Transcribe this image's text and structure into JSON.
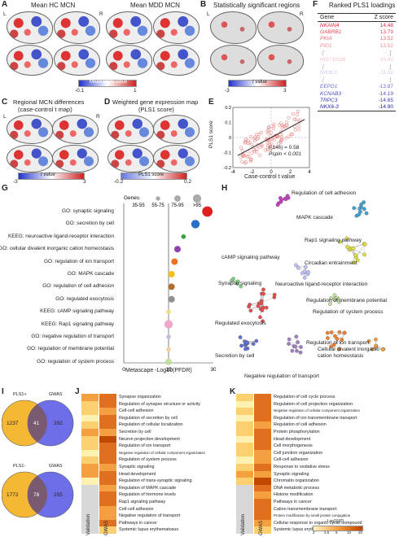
{
  "panels": {
    "A": "A",
    "B": "B",
    "C": "C",
    "D": "D",
    "E": "E",
    "F": "F",
    "G": "G",
    "H": "H",
    "I": "I",
    "J": "J",
    "K": "K"
  },
  "A": {
    "title_hc": "Mean HC MCN",
    "title_mdd": "Mean MDD MCN",
    "L": "L",
    "R": "R",
    "cbar_label": "Mean MCN value",
    "min": "-0.1",
    "max": "1"
  },
  "B": {
    "title": "Statistically significant regions",
    "L": "L",
    "R": "R",
    "cbar_label": "t value",
    "min": "-3",
    "max": "3"
  },
  "C": {
    "title1": "Regional MCN differences",
    "title2": "(case-control t map)",
    "L": "L",
    "R": "R",
    "cbar_label": "t value",
    "min": "-3",
    "max": "3"
  },
  "D": {
    "title1": "Weighted gene expression map",
    "title2": "(PLS1 score)",
    "cbar_label": "PLS1 score",
    "min": "-0.2",
    "max": "0.2"
  },
  "E": {
    "ylabel": "PLS1 score",
    "xlabel": "Case-control t value",
    "stat1": "r(146) = 0.58",
    "stat2": "Pspin < 0.001",
    "xticks": [
      "-4",
      "-2",
      "0",
      "2",
      "4"
    ],
    "yticks": [
      "0.2",
      "0.1",
      "0",
      "-0.1",
      "-0.2"
    ]
  },
  "F": {
    "title": "Ranked PLS1 loadings",
    "col_gene": "Gene",
    "col_z": "Z score",
    "rows": [
      {
        "gene": "NKAIN4",
        "z": "14.48",
        "color": "#e8203a"
      },
      {
        "gene": "GABRB1",
        "z": "13.79",
        "color": "#e84a5a"
      },
      {
        "gene": "PKIA",
        "z": "13.52",
        "color": "#ea6a75"
      },
      {
        "gene": "PID1",
        "z": "13.52",
        "color": "#ee8a92"
      },
      {
        "gene": "⋮",
        "z": "⋮",
        "color": "#333"
      },
      {
        "gene": "HIST1H2B",
        "z": "10.42",
        "color": "#f4c0c6"
      },
      {
        "gene": "⋮",
        "z": "⋮",
        "color": "#333"
      },
      {
        "gene": "NR3C1",
        "z": "-11.02",
        "color": "#c8c8ee"
      },
      {
        "gene": "⋮",
        "z": "⋮",
        "color": "#333"
      },
      {
        "gene": "EEPD1",
        "z": "-13.87",
        "color": "#6b6bd8"
      },
      {
        "gene": "KCNAB3",
        "z": "-14.19",
        "color": "#5050cc"
      },
      {
        "gene": "TRPC3",
        "z": "-14.65",
        "color": "#3a3ac4"
      },
      {
        "gene": "NKX6-3",
        "z": "-14.90",
        "color": "#1a1aa8"
      }
    ]
  },
  "G": {
    "genes_label": "Genes",
    "size_labels": [
      "35-55",
      "55-75",
      "75-95",
      ">95"
    ],
    "xlabel": "Metascape -Log10(PFDR)",
    "xticks": [
      "0",
      "15",
      "30"
    ],
    "terms": [
      {
        "label": "GO: synaptic signaling",
        "value": 28,
        "size": 4,
        "color": "#e02020"
      },
      {
        "label": "GO: secretion by cell",
        "value": 24,
        "size": 3,
        "color": "#2a70c8"
      },
      {
        "label": "KEEG: neuroactive ligand-receptor interaction",
        "value": 20,
        "size": 1,
        "color": "#3aa040"
      },
      {
        "label": "GO: cellular divalent inorganic cation homeostasis",
        "value": 18,
        "size": 2,
        "color": "#9040b0"
      },
      {
        "label": "GO: regulation of ion transport",
        "value": 17,
        "size": 2,
        "color": "#f07020"
      },
      {
        "label": "GO: MAPK cascade",
        "value": 16,
        "size": 2,
        "color": "#f0c020"
      },
      {
        "label": "GO: regulation of cell adhesion",
        "value": 16,
        "size": 2,
        "color": "#b07030"
      },
      {
        "label": "GO: regulated exocytosis",
        "value": 16,
        "size": 2,
        "color": "#909090"
      },
      {
        "label": "KEEG: cAMP signaling pathway",
        "value": 15,
        "size": 1,
        "color": "#e8e080"
      },
      {
        "label": "KEEG: Rap1 signaling pathway",
        "value": 15,
        "size": 3,
        "color": "#f0a8c8"
      },
      {
        "label": "GO: negative regulation of transport",
        "value": 15,
        "size": 1,
        "color": "#c8b8e0"
      },
      {
        "label": "GO: regulation of membrane potential",
        "value": 15,
        "size": 1,
        "color": "#f4d0a0"
      },
      {
        "label": "GO: regulation of system process",
        "value": 15,
        "size": 2,
        "color": "#c0e0a0"
      }
    ]
  },
  "H": {
    "labels": [
      "Regulation of cell adhesion",
      "MAPK cascade",
      "Rap1 signaling pathway",
      "Circadian entrainment",
      "cAMP signaling pathway",
      "Synaptic signaling",
      "Neuroactive ligand-receptor interaction",
      "Regulation of membrane potential",
      "Regulated exocytosis",
      "Regulation of system process",
      "Regulation of ion transport",
      "Secretion by cell",
      "Cellular divalent inorganic",
      "cation homeostasis",
      "Negative regulation of transport"
    ]
  },
  "I": {
    "top": {
      "a": "PLS1+",
      "b": "GWAS",
      "left": "1237",
      "mid": "41",
      "right": "292"
    },
    "bottom": {
      "a": "PLS1-",
      "b": "GWAS",
      "left": "1772",
      "mid": "78",
      "right": "255"
    }
  },
  "J": {
    "xlabels": [
      "Validation",
      "GWAS"
    ],
    "rows": [
      "Synapse organization",
      "Regulation of synapse structure or activity",
      "Cell-cell adhesion",
      "Regulation of secretion by cell",
      "Regulation of cellular localization",
      "Secretion by cell",
      "Neuron projection development",
      "Regulation of ion transport",
      "Negative regulation of cellular component organization",
      "Regulation of system process",
      "Synaptic signaling",
      "Head development",
      "Regulation of trans-synaptic signaling",
      "Regulation of MAPK cascade",
      "Regulation of hormone levels",
      "Rap1 signaling pathway",
      "Cell-cell adhesion",
      "Negative regulation of transport",
      "Pathways in cancer",
      "Systemic lupus erythematosus"
    ],
    "val": [
      3,
      2,
      2,
      1,
      2,
      3,
      2,
      2,
      1,
      2,
      3,
      3,
      1,
      0,
      0,
      0,
      0,
      0,
      0,
      0
    ],
    "gwas": [
      4,
      4,
      3,
      4,
      4,
      3,
      5,
      4,
      4,
      4,
      3,
      4,
      4,
      3,
      4,
      4,
      3,
      3,
      4,
      2
    ]
  },
  "K": {
    "xlabels": [
      "Validation",
      "GWAS"
    ],
    "rows": [
      "Regulation of cell cycle process",
      "Regulation of cell projection organization",
      "Negative regulation of cellular component organization",
      "Regulation of ion transmembrane transport",
      "Regulation of cell adhesion",
      "Protein phosphorylation",
      "Head development",
      "Cell morphogenesis",
      "Cell junction organization",
      "Cell-cell adhesion",
      "Response to oxidative stress",
      "Synaptic signaling",
      "Chromatin organization",
      "DNA metabolic process",
      "Histone modification",
      "Pathways in cancer",
      "Cation transmembrane transport",
      "Protein modification by small protein conjugation",
      "Cellular response to organic cyclic compound",
      "Systemic lupus erythematosus"
    ],
    "val": [
      2,
      1,
      2,
      1,
      2,
      2,
      1,
      2,
      2,
      1,
      2,
      3,
      2,
      0,
      0,
      0,
      0,
      0,
      0,
      0
    ],
    "gwas": [
      4,
      4,
      4,
      4,
      3,
      4,
      4,
      4,
      3,
      3,
      4,
      3,
      5,
      4,
      3,
      4,
      4,
      4,
      3,
      2
    ],
    "legend_title": "-Log10(P)",
    "legend_ticks": [
      "2",
      "3.6",
      "6",
      "10",
      "20"
    ]
  }
}
